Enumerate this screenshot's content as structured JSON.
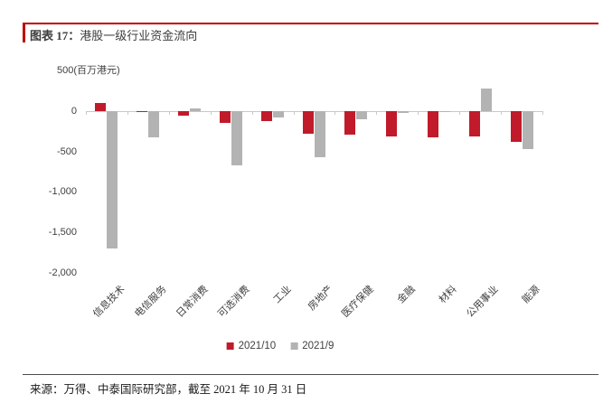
{
  "header": {
    "figure_label": "图表 17：",
    "title": "港股一级行业资金流向"
  },
  "chart_data": {
    "type": "bar",
    "title": "港股一级行业资金流向",
    "unit": "百万港元",
    "categories": [
      "信息技术",
      "电信服务",
      "日常消费",
      "可选消费",
      "工业",
      "房地产",
      "医疗保健",
      "金融",
      "材料",
      "公用事业",
      "能源"
    ],
    "series": [
      {
        "name": "2021/10",
        "color": "#c11a2b",
        "values": [
          100,
          -10,
          -60,
          -150,
          -130,
          -280,
          -290,
          -320,
          -330,
          -320,
          -380
        ]
      },
      {
        "name": "2021/9",
        "color": "#b3b3b3",
        "values": [
          -1700,
          -330,
          30,
          -670,
          -80,
          -570,
          -100,
          -20,
          -10,
          280,
          -470
        ]
      }
    ],
    "ylim": [
      -2000,
      500
    ],
    "yticks": [
      {
        "label": "500(百万港元)",
        "value": 500,
        "align": "unit"
      },
      {
        "label": "0",
        "value": 0,
        "align": "right"
      },
      {
        "label": "-500",
        "value": -500,
        "align": "right"
      },
      {
        "label": "-1,000",
        "value": -1000,
        "align": "right"
      },
      {
        "label": "-1,500",
        "value": -1500,
        "align": "right"
      },
      {
        "label": "-2,000",
        "value": -2000,
        "align": "right"
      }
    ],
    "grid": false,
    "legend_position": "bottom"
  },
  "footer": {
    "source": "来源：万得、中泰国际研究部，截至 2021 年 10 月 31 日"
  }
}
